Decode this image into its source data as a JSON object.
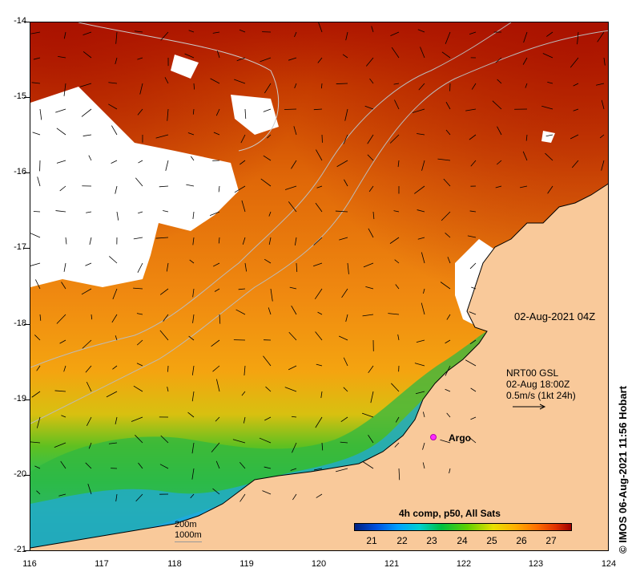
{
  "map": {
    "title_date": "02-Aug-2021 04Z",
    "y_ticks": [
      "-14",
      "-15",
      "-16",
      "-17",
      "-18",
      "-19",
      "-20",
      "-21"
    ],
    "x_ticks": [
      "116",
      "117",
      "118",
      "119",
      "120",
      "121",
      "122",
      "123",
      "124"
    ],
    "vector_info": {
      "line1": "NRT00 GSL",
      "line2": "02-Aug 18:00Z",
      "line3": "0.5m/s (1kt 24h)"
    },
    "argo_label": "Argo",
    "colorbar": {
      "title": "4h comp, p50, All Sats",
      "ticks": [
        "21",
        "22",
        "23",
        "24",
        "25",
        "26",
        "27"
      ]
    },
    "depth_legend": {
      "shallow": "200m",
      "deep": "1000m"
    },
    "credit": "© IMOS 06-Aug-2021 11:56 Hobart",
    "colors": {
      "land": "#f9c99a",
      "cloud": "#ffffff",
      "warm": "#b83000",
      "mid": "#e07a10",
      "cool_green": "#40c020",
      "cold_blue": "#1090e0",
      "argo": "#ff2aff"
    }
  }
}
